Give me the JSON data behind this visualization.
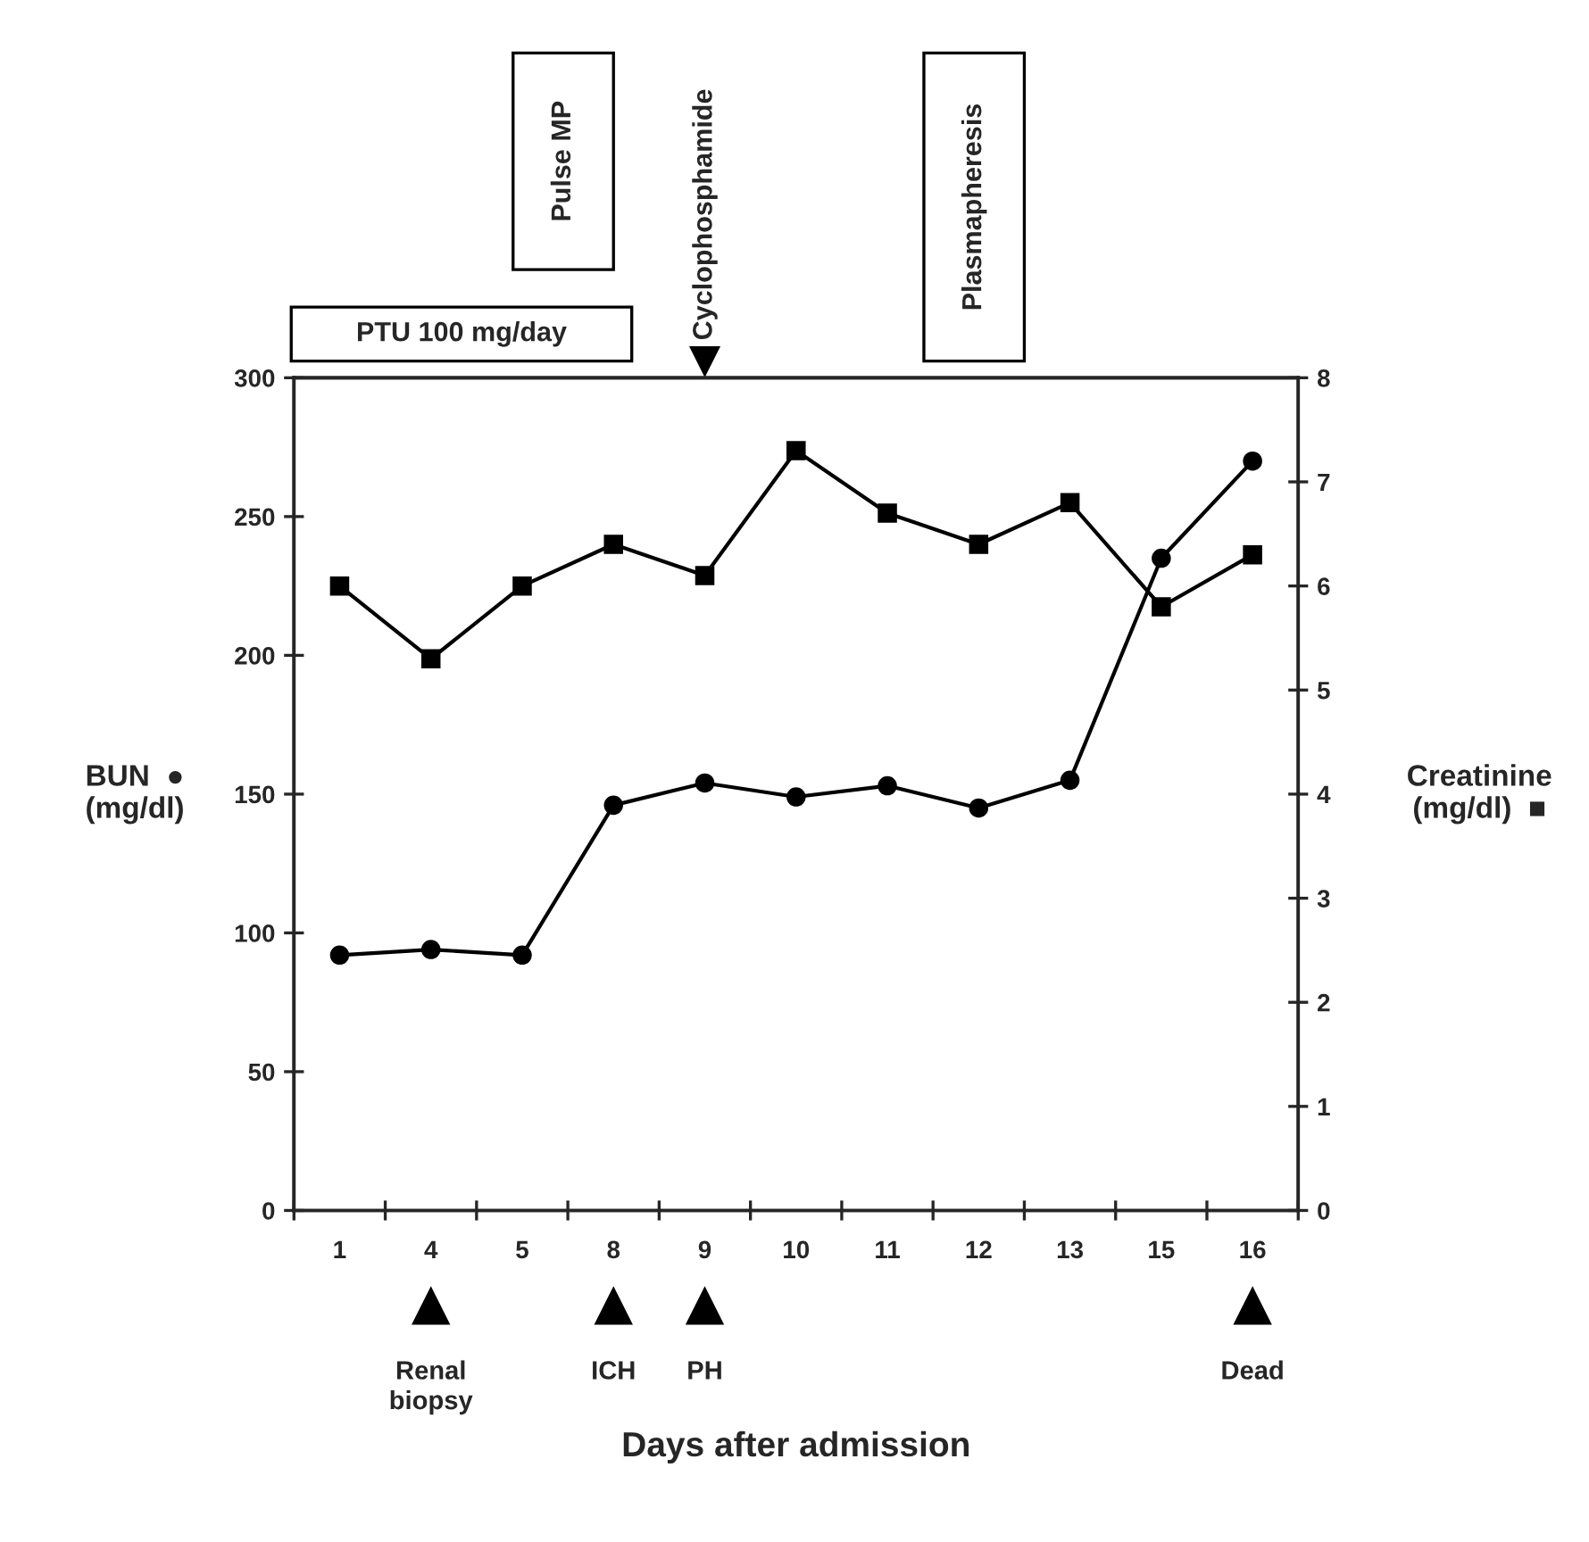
{
  "chart_data": {
    "type": "line",
    "categories": [
      "1",
      "4",
      "5",
      "8",
      "9",
      "10",
      "11",
      "12",
      "13",
      "15",
      "16"
    ],
    "series": [
      {
        "color": "#000000",
        "marker": "circle",
        "values": [
          92,
          94,
          92,
          146,
          154,
          149,
          153,
          145,
          155,
          235,
          270
        ]
      },
      {
        "color": "#000000",
        "marker": "square",
        "axis": "y2",
        "values": [
          6.0,
          5.3,
          6.0,
          6.4,
          6.1,
          7.3,
          6.7,
          6.4,
          6.8,
          5.8,
          6.3
        ]
      }
    ],
    "ylim": [
      0,
      300
    ],
    "yticks": [
      0,
      50,
      100,
      150,
      200,
      250,
      300
    ],
    "y2lim": [
      0,
      8
    ],
    "y2ticks": [
      0,
      1,
      2,
      3,
      4,
      5,
      6,
      7,
      8
    ],
    "xlabel": "Days after admission",
    "ylabel": "BUN  ●\n(mg/dl)",
    "y2label": "Creatinine\n(mg/dl)  ■",
    "annotations": [
      "PTU 100 mg/day",
      "Pulse MP",
      "Cyclophosphamide",
      "Plasmapheresis",
      "Renal\nbiopsy",
      "ICH",
      "PH",
      "Dead"
    ],
    "grid": false,
    "legend": false
  }
}
